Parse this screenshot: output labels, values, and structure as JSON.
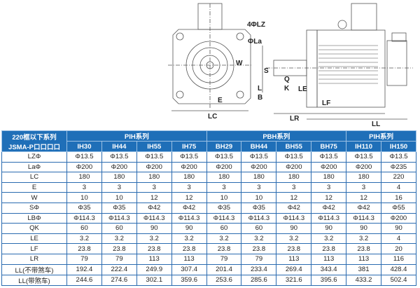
{
  "drawing": {
    "labels": {
      "LZ": "4ΦLZ",
      "La": "ΦLa",
      "W": "W",
      "E": "E",
      "LC": "LC",
      "S": "S",
      "Q": "Q",
      "K": "K",
      "L": "L",
      "B": "B",
      "LE": "LE",
      "LF": "LF",
      "LR": "LR",
      "LL": "LL"
    }
  },
  "table": {
    "corner": [
      "220框以下系列",
      "JSMA-P口口口口"
    ],
    "groups": [
      {
        "label": "PIH系列",
        "span": 4
      },
      {
        "label": "PBH系列",
        "span": 4
      },
      {
        "label": "PIH系列",
        "span": 2
      }
    ],
    "models": [
      "IH30",
      "IH44",
      "IH55",
      "IH75",
      "BH29",
      "BH44",
      "BH55",
      "BH75",
      "IH110",
      "IH150"
    ],
    "rows": [
      {
        "label": "LZΦ",
        "values": [
          "Φ13.5",
          "Φ13.5",
          "Φ13.5",
          "Φ13.5",
          "Φ13.5",
          "Φ13.5",
          "Φ13.5",
          "Φ13.5",
          "Φ13.5",
          "Φ13.5"
        ]
      },
      {
        "label": "LaΦ",
        "values": [
          "Φ200",
          "Φ200",
          "Φ200",
          "Φ200",
          "Φ200",
          "Φ200",
          "Φ200",
          "Φ200",
          "Φ200",
          "Φ235"
        ]
      },
      {
        "label": "LC",
        "values": [
          "180",
          "180",
          "180",
          "180",
          "180",
          "180",
          "180",
          "180",
          "180",
          "220"
        ]
      },
      {
        "label": "E",
        "values": [
          "3",
          "3",
          "3",
          "3",
          "3",
          "3",
          "3",
          "3",
          "3",
          "4"
        ]
      },
      {
        "label": "W",
        "values": [
          "10",
          "10",
          "12",
          "12",
          "10",
          "10",
          "12",
          "12",
          "12",
          "16"
        ]
      },
      {
        "label": "SΦ",
        "values": [
          "Φ35",
          "Φ35",
          "Φ42",
          "Φ42",
          "Φ35",
          "Φ35",
          "Φ42",
          "Φ42",
          "Φ42",
          "Φ55"
        ]
      },
      {
        "label": "LBΦ",
        "values": [
          "Φ114.3",
          "Φ114.3",
          "Φ114.3",
          "Φ114.3",
          "Φ114.3",
          "Φ114.3",
          "Φ114.3",
          "Φ114.3",
          "Φ114.3",
          "Φ200"
        ]
      },
      {
        "label": "QK",
        "values": [
          "60",
          "60",
          "90",
          "90",
          "60",
          "60",
          "90",
          "90",
          "90",
          "90"
        ]
      },
      {
        "label": "LE",
        "values": [
          "3.2",
          "3.2",
          "3.2",
          "3.2",
          "3.2",
          "3.2",
          "3.2",
          "3.2",
          "3.2",
          "4"
        ]
      },
      {
        "label": "LF",
        "values": [
          "23.8",
          "23.8",
          "23.8",
          "23.8",
          "23.8",
          "23.8",
          "23.8",
          "23.8",
          "23.8",
          "20"
        ]
      },
      {
        "label": "LR",
        "values": [
          "79",
          "79",
          "113",
          "113",
          "79",
          "79",
          "113",
          "113",
          "113",
          "116"
        ]
      },
      {
        "label": "LL(不带煞车)",
        "values": [
          "192.4",
          "222.4",
          "249.9",
          "307.4",
          "201.4",
          "233.4",
          "269.4",
          "343.4",
          "381",
          "428.4"
        ]
      },
      {
        "label": "LL(带煞车)",
        "values": [
          "244.6",
          "274.6",
          "302.1",
          "359.6",
          "253.6",
          "285.6",
          "321.6",
          "395.6",
          "433.2",
          "502.4"
        ]
      }
    ]
  },
  "colors": {
    "header": "#1f6fb8",
    "border": "#2a6bb0"
  }
}
